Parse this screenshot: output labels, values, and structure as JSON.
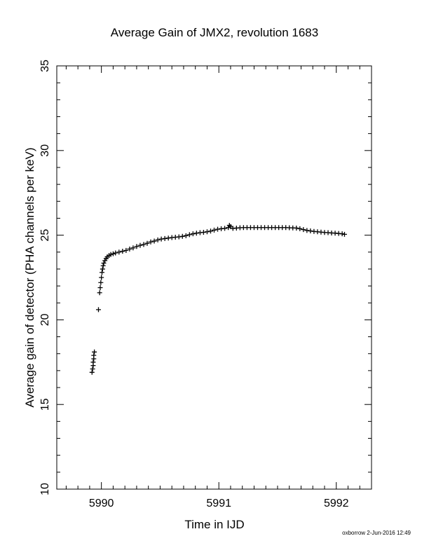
{
  "chart_data": {
    "type": "scatter",
    "title": "Average Gain of JMX2, revolution 1683",
    "xlabel": "Time in IJD",
    "ylabel": "Average gain of detector (PHA channels per keV)",
    "xlim": [
      5989.62,
      5992.3
    ],
    "ylim": [
      10,
      35
    ],
    "xticks": [
      5990,
      5991,
      5992
    ],
    "xtick_labels": [
      "5990",
      "5991",
      "5992"
    ],
    "yticks": [
      10,
      15,
      20,
      25,
      30,
      35
    ],
    "ytick_labels": [
      "10",
      "15",
      "20",
      "25",
      "30",
      "35"
    ],
    "y_minor_step": 1,
    "x_minor_step": 0.1,
    "grid": false,
    "marker": "+",
    "series": [
      {
        "points": [
          [
            5989.92,
            16.9
          ],
          [
            5989.925,
            17.1
          ],
          [
            5989.93,
            17.3
          ],
          [
            5989.93,
            17.5
          ],
          [
            5989.935,
            17.7
          ],
          [
            5989.935,
            17.9
          ],
          [
            5989.94,
            18.1
          ],
          [
            5989.975,
            20.6
          ],
          [
            5989.985,
            21.6
          ],
          [
            5989.99,
            21.9
          ],
          [
            5989.995,
            22.2
          ],
          [
            5990.0,
            22.5
          ],
          [
            5990.005,
            22.8
          ],
          [
            5990.01,
            23.0
          ],
          [
            5990.015,
            23.2
          ],
          [
            5990.02,
            23.35
          ],
          [
            5990.03,
            23.5
          ],
          [
            5990.04,
            23.62
          ],
          [
            5990.05,
            23.72
          ],
          [
            5990.065,
            23.8
          ],
          [
            5990.08,
            23.86
          ],
          [
            5990.1,
            23.9
          ],
          [
            5990.12,
            23.95
          ],
          [
            5990.15,
            24.0
          ],
          [
            5990.18,
            24.05
          ],
          [
            5990.21,
            24.1
          ],
          [
            5990.24,
            24.18
          ],
          [
            5990.27,
            24.25
          ],
          [
            5990.3,
            24.33
          ],
          [
            5990.33,
            24.4
          ],
          [
            5990.36,
            24.45
          ],
          [
            5990.39,
            24.52
          ],
          [
            5990.42,
            24.6
          ],
          [
            5990.45,
            24.65
          ],
          [
            5990.48,
            24.72
          ],
          [
            5990.51,
            24.77
          ],
          [
            5990.54,
            24.8
          ],
          [
            5990.57,
            24.83
          ],
          [
            5990.6,
            24.86
          ],
          [
            5990.63,
            24.88
          ],
          [
            5990.66,
            24.9
          ],
          [
            5990.69,
            24.93
          ],
          [
            5990.72,
            24.97
          ],
          [
            5990.75,
            25.03
          ],
          [
            5990.78,
            25.08
          ],
          [
            5990.81,
            25.12
          ],
          [
            5990.84,
            25.15
          ],
          [
            5990.87,
            25.17
          ],
          [
            5990.9,
            25.2
          ],
          [
            5990.93,
            25.24
          ],
          [
            5990.96,
            25.3
          ],
          [
            5990.99,
            25.35
          ],
          [
            5991.02,
            25.38
          ],
          [
            5991.05,
            25.4
          ],
          [
            5991.08,
            25.45
          ],
          [
            5991.09,
            25.58
          ],
          [
            5991.1,
            25.5
          ],
          [
            5991.12,
            25.4
          ],
          [
            5991.15,
            25.42
          ],
          [
            5991.18,
            25.44
          ],
          [
            5991.21,
            25.45
          ],
          [
            5991.24,
            25.45
          ],
          [
            5991.27,
            25.45
          ],
          [
            5991.3,
            25.45
          ],
          [
            5991.33,
            25.45
          ],
          [
            5991.36,
            25.45
          ],
          [
            5991.39,
            25.45
          ],
          [
            5991.42,
            25.45
          ],
          [
            5991.45,
            25.45
          ],
          [
            5991.48,
            25.45
          ],
          [
            5991.51,
            25.45
          ],
          [
            5991.54,
            25.45
          ],
          [
            5991.57,
            25.45
          ],
          [
            5991.6,
            25.44
          ],
          [
            5991.63,
            25.43
          ],
          [
            5991.66,
            25.42
          ],
          [
            5991.69,
            25.38
          ],
          [
            5991.72,
            25.33
          ],
          [
            5991.75,
            25.28
          ],
          [
            5991.78,
            25.25
          ],
          [
            5991.81,
            25.22
          ],
          [
            5991.84,
            25.2
          ],
          [
            5991.87,
            25.18
          ],
          [
            5991.9,
            25.16
          ],
          [
            5991.93,
            25.15
          ],
          [
            5991.96,
            25.13
          ],
          [
            5991.99,
            25.12
          ],
          [
            5992.02,
            25.1
          ],
          [
            5992.05,
            25.08
          ],
          [
            5992.07,
            25.05
          ]
        ]
      }
    ]
  },
  "footer": "oxborrow  2-Jun-2016 12:49"
}
